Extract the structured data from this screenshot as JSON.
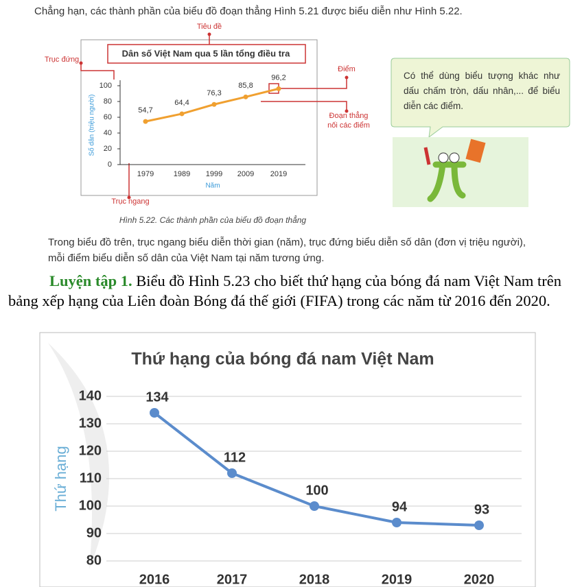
{
  "intro": "Chẳng hạn, các thành phần của biểu đồ đoạn thẳng Hình 5.21 được biểu diễn như Hình 5.22.",
  "figures": [
    {
      "type": "line",
      "title": "Dân số Việt Nam qua 5 lần tổng điều tra",
      "y_label": "Số dân (triệu người)",
      "x_label": "Năm",
      "categories": [
        "1979",
        "1989",
        "1999",
        "2009",
        "2019"
      ],
      "values": [
        54.7,
        64.4,
        76.3,
        85.8,
        96.2
      ],
      "value_labels": [
        "54,7",
        "64,4",
        "76,3",
        "85,8",
        "96,2"
      ],
      "color": "#f0a030",
      "ylim": [
        0,
        100
      ],
      "yticks": [
        0,
        20,
        40,
        60,
        80,
        100
      ],
      "annotations": [
        "Tiêu đề",
        "Trục đứng",
        "Điểm",
        "Đoạn thẳng nối các điểm",
        "Trục ngang"
      ],
      "caption": "Hình 5.22. Các thành phần của biểu đồ đoạn thẳng"
    },
    {
      "type": "line",
      "title": "Thứ hạng của bóng đá nam Việt Nam",
      "y_label": "Thứ hạng",
      "categories": [
        "2016",
        "2017",
        "2018",
        "2019",
        "2020"
      ],
      "values": [
        134,
        112,
        100,
        94,
        93
      ],
      "color": "#5b8ccc",
      "ylim": [
        80,
        140
      ],
      "yticks": [
        80,
        90,
        100,
        110,
        120,
        130,
        140
      ],
      "grid": true
    }
  ],
  "tip": "Có thể dùng biểu tượng khác như dấu chấm tròn, dấu nhân,... để biểu diễn các điểm.",
  "paragraph": "Trong biểu đồ trên, trục ngang biểu diễn thời gian (năm), trục đứng biểu diễn số dân (đơn vị triệu người), mỗi điểm biểu diễn số dân của Việt Nam tại năm tương ứng.",
  "exercise": {
    "label": "Luyện tập 1.",
    "text": "Biểu đồ Hình 5.23 cho biết thứ hạng của bóng đá nam Việt Nam trên bảng xếp hạng của Liên đoàn Bóng đá thế giới (FIFA) trong các năm từ 2016 đến 2020."
  }
}
